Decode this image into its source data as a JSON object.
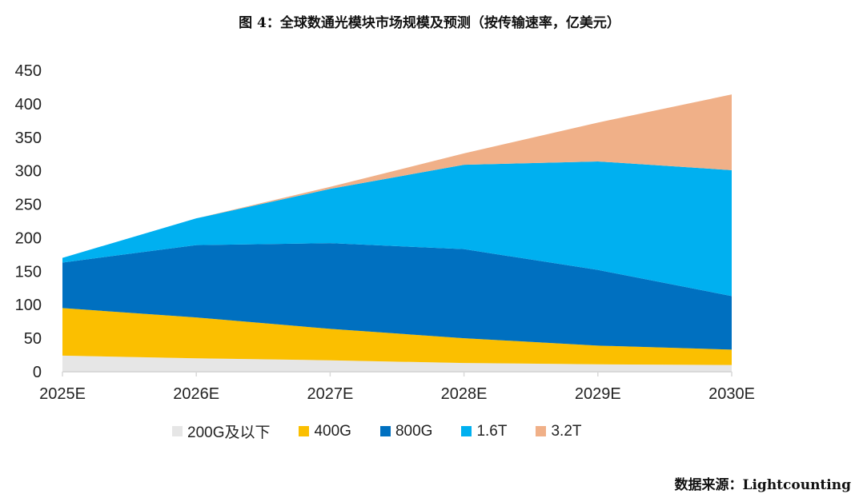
{
  "title": "图 4：全球数通光模块市场规模及预测（按传输速率，亿美元）",
  "source": "数据来源：Lightcounting",
  "chart_data": {
    "type": "area",
    "stacked": true,
    "title": "图 4：全球数通光模块市场规模及预测（按传输速率，亿美元）",
    "xlabel": "",
    "ylabel": "",
    "categories": [
      "2025E",
      "2026E",
      "2027E",
      "2028E",
      "2029E",
      "2030E"
    ],
    "ylim": [
      0,
      450
    ],
    "yticks": [
      0,
      50,
      100,
      150,
      200,
      250,
      300,
      350,
      400,
      450
    ],
    "grid": false,
    "legend": "bottom",
    "series": [
      {
        "name": "200G及以下",
        "color": "#e6e6e6",
        "values": [
          24,
          20,
          17,
          13,
          11,
          10
        ]
      },
      {
        "name": "400G",
        "color": "#fbbf00",
        "values": [
          71,
          61,
          47,
          37,
          28,
          23
        ]
      },
      {
        "name": "800G",
        "color": "#0070c0",
        "values": [
          68,
          108,
          128,
          133,
          113,
          80
        ]
      },
      {
        "name": "1.6T",
        "color": "#00b0f0",
        "values": [
          7,
          40,
          81,
          126,
          162,
          188
        ]
      },
      {
        "name": "3.2T",
        "color": "#f0b088",
        "values": [
          0,
          0,
          3,
          17,
          58,
          113
        ]
      }
    ]
  }
}
